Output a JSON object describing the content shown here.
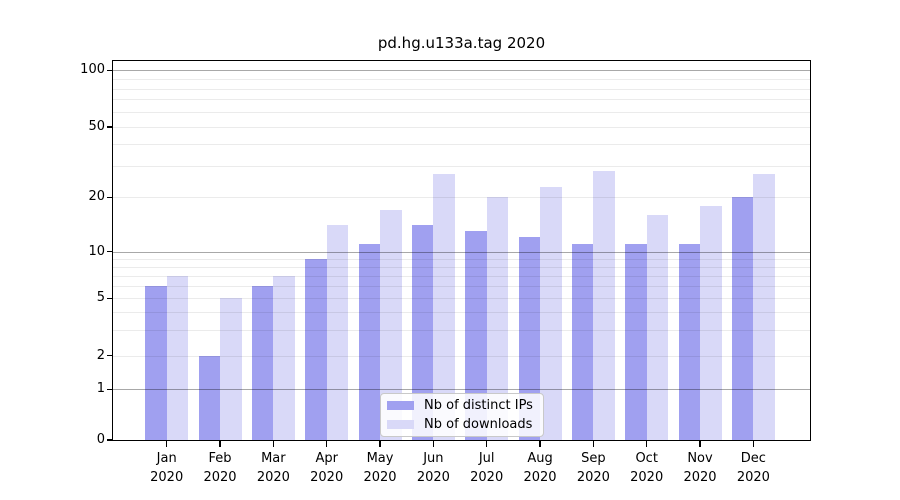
{
  "title": "pd.hg.u133a.tag 2020",
  "legend": {
    "items": [
      {
        "label": "Nb of distinct IPs",
        "color": "#a0a0f0"
      },
      {
        "label": "Nb of downloads",
        "color": "#d9d9f8"
      }
    ]
  },
  "axes": {
    "ytick_labels": [
      "100",
      "50",
      "20",
      "10",
      "5",
      "2",
      "1",
      "0"
    ],
    "yticks": [
      100,
      50,
      20,
      10,
      5,
      2,
      1,
      0
    ]
  },
  "chart_data": {
    "type": "bar",
    "title": "pd.hg.u133a.tag 2020",
    "categories": [
      "Jan 2020",
      "Feb 2020",
      "Mar 2020",
      "Apr 2020",
      "May 2020",
      "Jun 2020",
      "Jul 2020",
      "Aug 2020",
      "Sep 2020",
      "Oct 2020",
      "Nov 2020",
      "Dec 2020"
    ],
    "series": [
      {
        "name": "Nb of distinct IPs",
        "color": "#a0a0f0",
        "values": [
          6,
          2,
          6,
          9,
          11,
          14,
          13,
          12,
          11,
          11,
          11,
          20
        ]
      },
      {
        "name": "Nb of downloads",
        "color": "#d9d9f8",
        "values": [
          7,
          5,
          7,
          14,
          17,
          27,
          20,
          23,
          28,
          16,
          18,
          27
        ]
      }
    ],
    "yscale": "log-like with linear 0-1 segment",
    "yticks": [
      0,
      1,
      2,
      5,
      10,
      20,
      50,
      100
    ],
    "ylim": [
      0,
      112
    ],
    "minor_gridlines": [
      2,
      3,
      4,
      5,
      6,
      7,
      8,
      9,
      20,
      30,
      40,
      50,
      60,
      70,
      80,
      90
    ],
    "major_gridlines": [
      1,
      10,
      100
    ],
    "grid": "on, drawn over bars",
    "legend_position": "lower center, inside plot"
  }
}
